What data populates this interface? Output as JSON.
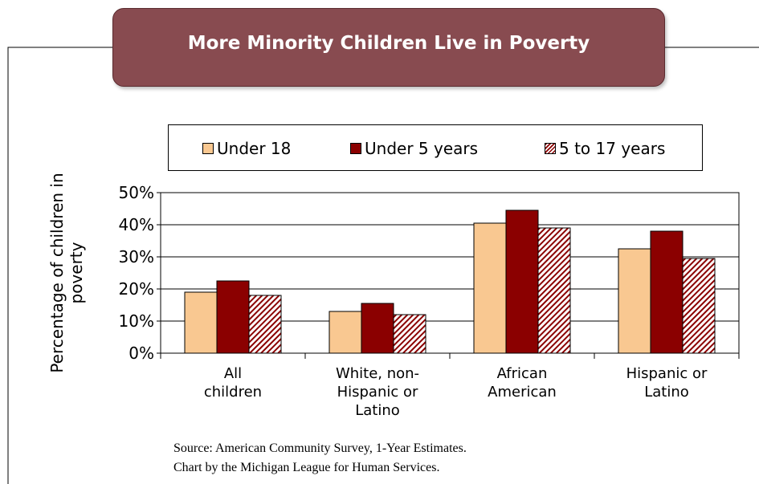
{
  "title": "More Minority Children Live in Poverty",
  "colors": {
    "title_bg": "#884b50",
    "under18": "#f9c891",
    "under5": "#8b0000",
    "age5to17": "#8b0000"
  },
  "legend": [
    {
      "label": "Under 18",
      "color": "#f9c891",
      "pattern": "solid"
    },
    {
      "label": "Under 5 years",
      "color": "#8b0000",
      "pattern": "solid"
    },
    {
      "label": "5 to 17 years",
      "color": "#8b0000",
      "pattern": "hatched"
    }
  ],
  "source_line1": "Source:  American Community Survey, 1-Year Estimates.",
  "source_line2": "Chart by the Michigan League for Human Services.",
  "chart_data": {
    "type": "bar",
    "title": "More Minority Children Live in Poverty",
    "xlabel": "",
    "ylabel": "Percentage of children in poverty",
    "categories": [
      "All children",
      "White, non-Hispanic or Latino",
      "African American",
      "Hispanic or Latino"
    ],
    "category_lines": [
      [
        "All",
        "children"
      ],
      [
        "White, non-",
        "Hispanic or",
        "Latino"
      ],
      [
        "African",
        "American"
      ],
      [
        "Hispanic or",
        "Latino"
      ]
    ],
    "series": [
      {
        "name": "Under 18",
        "values": [
          19,
          13,
          40.5,
          32.5
        ]
      },
      {
        "name": "Under 5 years",
        "values": [
          22.5,
          15.5,
          44.5,
          38
        ]
      },
      {
        "name": "5 to 17 years",
        "values": [
          18,
          12,
          39,
          29.5
        ]
      }
    ],
    "ylim": [
      0,
      50
    ],
    "yticks": [
      "0%",
      "10%",
      "20%",
      "30%",
      "40%",
      "50%"
    ],
    "grid": true,
    "legend_position": "top"
  }
}
